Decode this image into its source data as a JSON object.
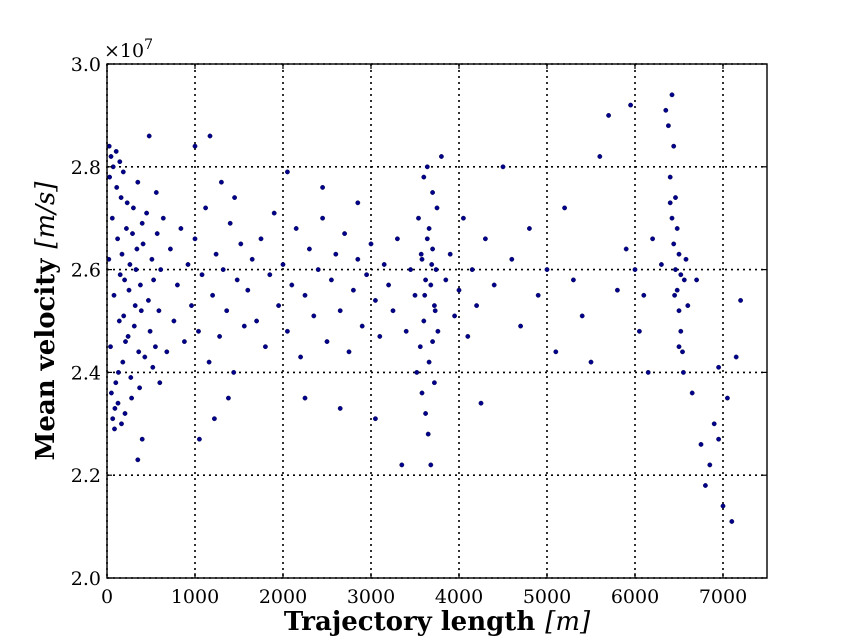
{
  "chart_data": {
    "type": "scatter",
    "title": "",
    "xlabel": "Trajectory length",
    "xunit": "[m]",
    "ylabel": "Mean velocity",
    "yunit": "[m/s]",
    "y_multiplier": "×10",
    "y_multiplier_exp": "7",
    "xlim": [
      0,
      7500
    ],
    "ylim": [
      2.0,
      3.0
    ],
    "x_ticks": [
      "0",
      "1000",
      "2000",
      "3000",
      "4000",
      "5000",
      "6000",
      "7000"
    ],
    "y_ticks": [
      "2.0",
      "2.2",
      "2.4",
      "2.6",
      "2.8",
      "3.0"
    ],
    "grid": true,
    "marker_color": "#00008b",
    "points": [
      [
        20,
        2.62
      ],
      [
        40,
        2.45
      ],
      [
        60,
        2.7
      ],
      [
        80,
        2.55
      ],
      [
        100,
        2.38
      ],
      [
        120,
        2.66
      ],
      [
        140,
        2.5
      ],
      [
        160,
        2.74
      ],
      [
        180,
        2.42
      ],
      [
        200,
        2.58
      ],
      [
        220,
        2.68
      ],
      [
        240,
        2.47
      ],
      [
        260,
        2.61
      ],
      [
        280,
        2.35
      ],
      [
        300,
        2.72
      ],
      [
        320,
        2.53
      ],
      [
        340,
        2.64
      ],
      [
        360,
        2.44
      ],
      [
        380,
        2.57
      ],
      [
        400,
        2.69
      ],
      [
        30,
        2.78
      ],
      [
        50,
        2.36
      ],
      [
        70,
        2.8
      ],
      [
        90,
        2.33
      ],
      [
        110,
        2.76
      ],
      [
        130,
        2.4
      ],
      [
        150,
        2.59
      ],
      [
        170,
        2.63
      ],
      [
        190,
        2.51
      ],
      [
        210,
        2.46
      ],
      [
        230,
        2.73
      ],
      [
        250,
        2.56
      ],
      [
        270,
        2.39
      ],
      [
        290,
        2.67
      ],
      [
        310,
        2.49
      ],
      [
        330,
        2.6
      ],
      [
        350,
        2.77
      ],
      [
        370,
        2.37
      ],
      [
        390,
        2.52
      ],
      [
        410,
        2.65
      ],
      [
        430,
        2.43
      ],
      [
        450,
        2.71
      ],
      [
        470,
        2.54
      ],
      [
        490,
        2.48
      ],
      [
        510,
        2.62
      ],
      [
        530,
        2.58
      ],
      [
        550,
        2.45
      ],
      [
        570,
        2.67
      ],
      [
        590,
        2.52
      ],
      [
        610,
        2.6
      ],
      [
        25,
        2.84
      ],
      [
        45,
        2.82
      ],
      [
        65,
        2.31
      ],
      [
        85,
        2.29
      ],
      [
        105,
        2.83
      ],
      [
        125,
        2.34
      ],
      [
        145,
        2.81
      ],
      [
        165,
        2.3
      ],
      [
        185,
        2.79
      ],
      [
        205,
        2.32
      ],
      [
        350,
        2.23
      ],
      [
        400,
        2.27
      ],
      [
        480,
        2.86
      ],
      [
        520,
        2.41
      ],
      [
        560,
        2.75
      ],
      [
        600,
        2.38
      ],
      [
        640,
        2.7
      ],
      [
        680,
        2.44
      ],
      [
        720,
        2.64
      ],
      [
        760,
        2.5
      ],
      [
        800,
        2.57
      ],
      [
        840,
        2.68
      ],
      [
        880,
        2.46
      ],
      [
        920,
        2.61
      ],
      [
        960,
        2.53
      ],
      [
        1000,
        2.66
      ],
      [
        1040,
        2.48
      ],
      [
        1080,
        2.59
      ],
      [
        1120,
        2.72
      ],
      [
        1160,
        2.42
      ],
      [
        1200,
        2.55
      ],
      [
        1240,
        2.63
      ],
      [
        1280,
        2.47
      ],
      [
        1320,
        2.6
      ],
      [
        1360,
        2.52
      ],
      [
        1400,
        2.69
      ],
      [
        1440,
        2.4
      ],
      [
        1480,
        2.58
      ],
      [
        1520,
        2.65
      ],
      [
        1560,
        2.49
      ],
      [
        1170,
        2.86
      ],
      [
        1050,
        2.27
      ],
      [
        1000,
        2.84
      ],
      [
        1220,
        2.31
      ],
      [
        1300,
        2.77
      ],
      [
        1380,
        2.35
      ],
      [
        1450,
        2.74
      ],
      [
        1600,
        2.56
      ],
      [
        1650,
        2.62
      ],
      [
        1700,
        2.5
      ],
      [
        1750,
        2.66
      ],
      [
        1800,
        2.45
      ],
      [
        1850,
        2.59
      ],
      [
        1900,
        2.71
      ],
      [
        1950,
        2.53
      ],
      [
        2000,
        2.61
      ],
      [
        2050,
        2.48
      ],
      [
        2100,
        2.57
      ],
      [
        2150,
        2.68
      ],
      [
        2200,
        2.43
      ],
      [
        2250,
        2.55
      ],
      [
        2300,
        2.64
      ],
      [
        2350,
        2.51
      ],
      [
        2400,
        2.6
      ],
      [
        2450,
        2.7
      ],
      [
        2500,
        2.46
      ],
      [
        2550,
        2.58
      ],
      [
        2600,
        2.63
      ],
      [
        2650,
        2.52
      ],
      [
        2700,
        2.67
      ],
      [
        2750,
        2.44
      ],
      [
        2800,
        2.56
      ],
      [
        2850,
        2.62
      ],
      [
        2900,
        2.49
      ],
      [
        2950,
        2.59
      ],
      [
        3000,
        2.65
      ],
      [
        3050,
        2.54
      ],
      [
        3100,
        2.47
      ],
      [
        3150,
        2.61
      ],
      [
        3200,
        2.57
      ],
      [
        2050,
        2.79
      ],
      [
        2250,
        2.35
      ],
      [
        2450,
        2.76
      ],
      [
        2650,
        2.33
      ],
      [
        2850,
        2.73
      ],
      [
        3050,
        2.31
      ],
      [
        3250,
        2.52
      ],
      [
        3300,
        2.66
      ],
      [
        3350,
        2.22
      ],
      [
        3400,
        2.48
      ],
      [
        3450,
        2.6
      ],
      [
        3500,
        2.55
      ],
      [
        3520,
        2.4
      ],
      [
        3540,
        2.7
      ],
      [
        3560,
        2.45
      ],
      [
        3580,
        2.62
      ],
      [
        3600,
        2.5
      ],
      [
        3620,
        2.58
      ],
      [
        3640,
        2.66
      ],
      [
        3660,
        2.42
      ],
      [
        3680,
        2.57
      ],
      [
        3700,
        2.64
      ],
      [
        3720,
        2.53
      ],
      [
        3740,
        2.6
      ],
      [
        3760,
        2.48
      ],
      [
        3600,
        2.78
      ],
      [
        3650,
        2.28
      ],
      [
        3700,
        2.75
      ],
      [
        3620,
        2.32
      ],
      [
        3680,
        2.22
      ],
      [
        3750,
        2.72
      ],
      [
        3580,
        2.36
      ],
      [
        3640,
        2.8
      ],
      [
        3720,
        2.38
      ],
      [
        3660,
        2.68
      ],
      [
        3700,
        2.46
      ],
      [
        3610,
        2.55
      ],
      [
        3690,
        2.61
      ],
      [
        3730,
        2.52
      ],
      [
        3570,
        2.63
      ],
      [
        3800,
        2.82
      ],
      [
        3850,
        2.58
      ],
      [
        3900,
        2.63
      ],
      [
        3950,
        2.51
      ],
      [
        4000,
        2.56
      ],
      [
        4050,
        2.7
      ],
      [
        4100,
        2.47
      ],
      [
        4150,
        2.6
      ],
      [
        4200,
        2.53
      ],
      [
        4250,
        2.34
      ],
      [
        4300,
        2.66
      ],
      [
        4400,
        2.57
      ],
      [
        4500,
        2.8
      ],
      [
        4600,
        2.62
      ],
      [
        4700,
        2.49
      ],
      [
        4800,
        2.68
      ],
      [
        4900,
        2.55
      ],
      [
        5000,
        2.6
      ],
      [
        5100,
        2.44
      ],
      [
        5200,
        2.72
      ],
      [
        5300,
        2.58
      ],
      [
        5400,
        2.51
      ],
      [
        5500,
        2.42
      ],
      [
        5600,
        2.82
      ],
      [
        5700,
        2.9
      ],
      [
        5800,
        2.56
      ],
      [
        5900,
        2.64
      ],
      [
        5950,
        2.92
      ],
      [
        6000,
        2.6
      ],
      [
        6050,
        2.48
      ],
      [
        6100,
        2.55
      ],
      [
        6150,
        2.4
      ],
      [
        6200,
        2.66
      ],
      [
        6300,
        2.61
      ],
      [
        6350,
        2.91
      ],
      [
        6380,
        2.88
      ],
      [
        6400,
        2.78
      ],
      [
        6420,
        2.7
      ],
      [
        6440,
        2.65
      ],
      [
        6460,
        2.6
      ],
      [
        6480,
        2.56
      ],
      [
        6500,
        2.52
      ],
      [
        6520,
        2.48
      ],
      [
        6540,
        2.44
      ],
      [
        6560,
        2.58
      ],
      [
        6580,
        2.62
      ],
      [
        6420,
        2.94
      ],
      [
        6440,
        2.84
      ],
      [
        6460,
        2.74
      ],
      [
        6480,
        2.68
      ],
      [
        6500,
        2.63
      ],
      [
        6520,
        2.59
      ],
      [
        6400,
        2.73
      ],
      [
        6450,
        2.55
      ],
      [
        6500,
        2.45
      ],
      [
        6550,
        2.4
      ],
      [
        6600,
        2.53
      ],
      [
        6650,
        2.36
      ],
      [
        6700,
        2.58
      ],
      [
        6750,
        2.26
      ],
      [
        6800,
        2.18
      ],
      [
        6850,
        2.22
      ],
      [
        6900,
        2.3
      ],
      [
        6950,
        2.27
      ],
      [
        7000,
        2.14
      ],
      [
        7100,
        2.11
      ],
      [
        7150,
        2.43
      ],
      [
        7200,
        2.54
      ],
      [
        6950,
        2.41
      ],
      [
        7050,
        2.35
      ]
    ]
  }
}
